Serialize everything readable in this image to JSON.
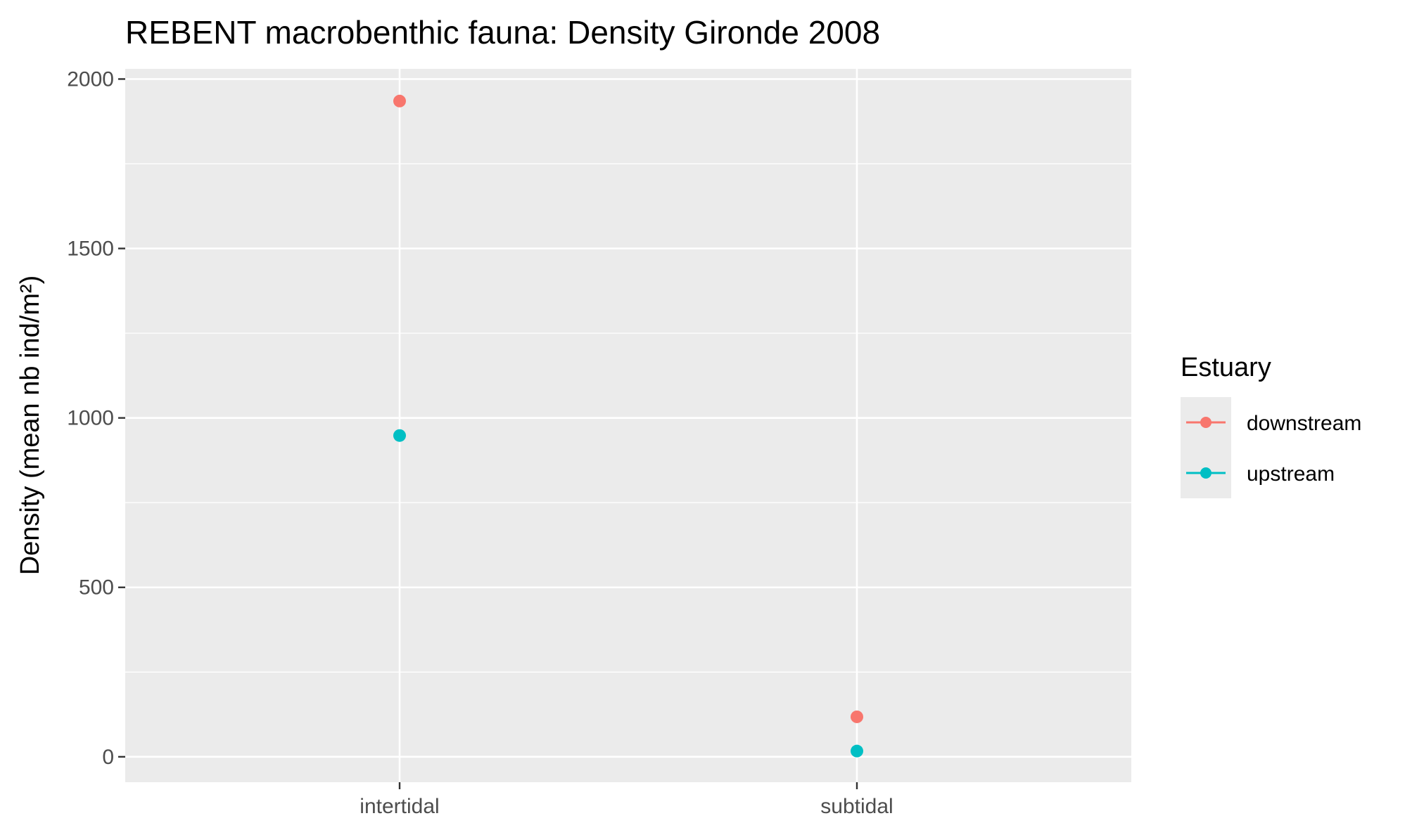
{
  "chart_data": {
    "type": "scatter",
    "title": "REBENT macrobenthic fauna: Density Gironde 2008",
    "xlabel": "",
    "ylabel": "Density (mean nb ind/m²)",
    "categories": [
      "intertidal",
      "subtidal"
    ],
    "ylim": [
      -75,
      2030
    ],
    "yticks": [
      0,
      500,
      1000,
      1500,
      2000
    ],
    "grid": true,
    "legend": {
      "title": "Estuary",
      "position": "right"
    },
    "series": [
      {
        "name": "downstream",
        "color": "#F8766D",
        "values": [
          1935,
          118
        ]
      },
      {
        "name": "upstream",
        "color": "#00BFC4",
        "values": [
          948,
          17
        ]
      }
    ]
  },
  "colors": {
    "panel_background": "#EBEBEB",
    "grid_line": "#FFFFFF",
    "tick_mark": "#333333"
  }
}
